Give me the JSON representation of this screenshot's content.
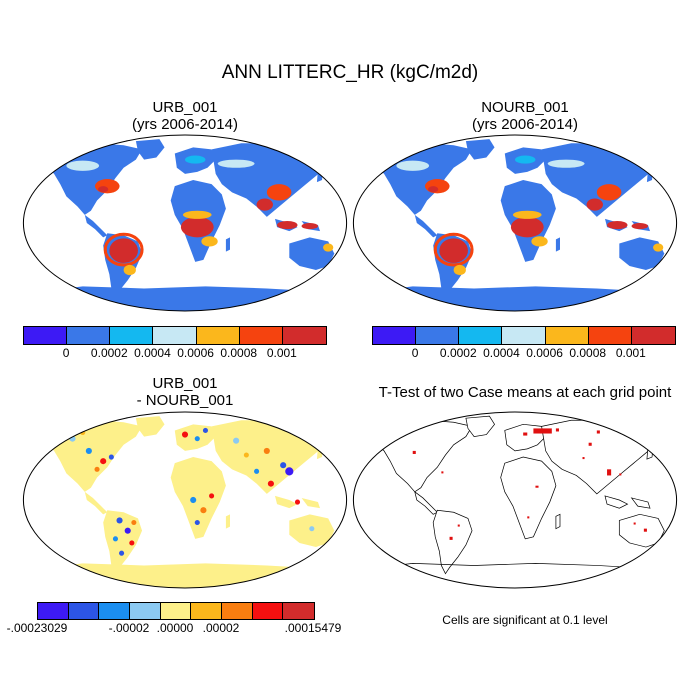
{
  "title": "ANN LITTERC_HR (kgC/m2d)",
  "panels": {
    "top_left": {
      "title": "URB_001",
      "subtitle": "(yrs 2006-2014)"
    },
    "top_right": {
      "title": "NOURB_001",
      "subtitle": "(yrs 2006-2014)"
    },
    "bottom_left": {
      "title": "URB_001",
      "subtitle": "- NOURB_001"
    },
    "bottom_right": {
      "title": "T-Test of two Case means at each grid point"
    }
  },
  "colorbar_abs": {
    "colors": [
      "#3d1af5",
      "#3a78e8",
      "#14b8f0",
      "#c7e8f4",
      "#fbb71c",
      "#f5430f",
      "#d22c2c"
    ],
    "labels": [
      "0",
      "0.0002",
      "0.0004",
      "0.0006",
      "0.0008",
      "0.001"
    ]
  },
  "colorbar_diff": {
    "colors": [
      "#3d1af5",
      "#2c55e6",
      "#1b8ef0",
      "#8ccaf2",
      "#fdf08a",
      "#fbb71c",
      "#f97e10",
      "#f51010",
      "#d22c2c"
    ],
    "labels": [
      "-.00023029",
      "-.00002",
      ".00000",
      ".00002",
      ".00015479"
    ]
  },
  "significance_note": "Cells are significant at 0.1 level",
  "colors": {
    "ocean": "#ffffff",
    "antarctica_abs": "#3a78e8",
    "antarctica_diff": "#fdf08a",
    "significant": "#e01010"
  }
}
